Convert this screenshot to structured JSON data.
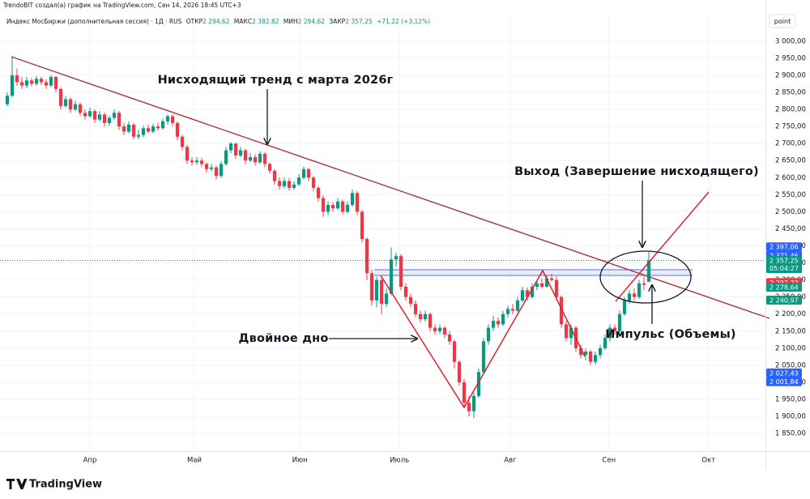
{
  "watermark": "TrendoBIT создал(а) график на TradingView.com, Сен 14, 2026 18:45 UTC+3",
  "scale_button": "point",
  "branding": "TradingView",
  "chart_data": {
    "type": "candlestick",
    "legend": {
      "name": "Индекс МосБиржи (дополнительная сессия) · 1Д · RUS",
      "open_label": "ОТКР",
      "open": "2 294,62",
      "high_label": "МАКС",
      "high": "2 382,82",
      "low_label": "МИН",
      "low": "2 294,62",
      "close_label": "ЗАКР",
      "close": "2 357,25",
      "change": "+71,22 (+3,12%)"
    },
    "up_color": "#089981",
    "down_color": "#f23645",
    "grid": true,
    "open": [
      2815,
      2840,
      2900,
      2880,
      2870,
      2885,
      2875,
      2890,
      2880,
      2870,
      2895,
      2860,
      2810,
      2830,
      2800,
      2815,
      2790,
      2780,
      2795,
      2770,
      2785,
      2760,
      2775,
      2790,
      2750,
      2735,
      2755,
      2720,
      2725,
      2745,
      2735,
      2750,
      2745,
      2765,
      2780,
      2760,
      2720,
      2690,
      2650,
      2645,
      2650,
      2640,
      2625,
      2630,
      2605,
      2640,
      2680,
      2700,
      2665,
      2680,
      2650,
      2660,
      2645,
      2670,
      2640,
      2620,
      2590,
      2575,
      2590,
      2570,
      2580,
      2600,
      2625,
      2600,
      2570,
      2540,
      2500,
      2520,
      2510,
      2530,
      2500,
      2520,
      2555,
      2500,
      2420,
      2320,
      2240,
      2300,
      2230,
      2260,
      2360,
      2370,
      2280,
      2250,
      2230,
      2200,
      2185,
      2200,
      2160,
      2150,
      2160,
      2140,
      2120,
      2060,
      2000,
      1940,
      1915,
      1960,
      2030,
      2120,
      2160,
      2180,
      2170,
      2200,
      2215,
      2210,
      2240,
      2270,
      2250,
      2280,
      2290,
      2280,
      2305,
      2300,
      2250,
      2170,
      2130,
      2160,
      2100,
      2080,
      2090,
      2060,
      2080,
      2100,
      2130,
      2160,
      2150,
      2200,
      2240,
      2260,
      2250,
      2290,
      2294.62
    ],
    "high": [
      2850,
      2955,
      2920,
      2895,
      2895,
      2892,
      2898,
      2896,
      2888,
      2900,
      2898,
      2865,
      2840,
      2835,
      2825,
      2820,
      2800,
      2805,
      2800,
      2795,
      2790,
      2782,
      2800,
      2795,
      2760,
      2765,
      2760,
      2740,
      2752,
      2755,
      2758,
      2760,
      2772,
      2785,
      2785,
      2765,
      2725,
      2695,
      2660,
      2660,
      2658,
      2645,
      2640,
      2635,
      2648,
      2690,
      2705,
      2702,
      2690,
      2685,
      2672,
      2668,
      2678,
      2675,
      2645,
      2625,
      2600,
      2600,
      2598,
      2590,
      2610,
      2632,
      2628,
      2605,
      2575,
      2548,
      2530,
      2528,
      2540,
      2535,
      2530,
      2565,
      2560,
      2505,
      2425,
      2330,
      2310,
      2305,
      2275,
      2395,
      2380,
      2375,
      2290,
      2260,
      2240,
      2210,
      2210,
      2205,
      2170,
      2170,
      2165,
      2150,
      2125,
      2065,
      2010,
      1960,
      1970,
      2040,
      2130,
      2170,
      2195,
      2190,
      2210,
      2225,
      2230,
      2250,
      2280,
      2278,
      2290,
      2300,
      2305,
      2315,
      2318,
      2310,
      2255,
      2180,
      2170,
      2165,
      2110,
      2100,
      2095,
      2090,
      2110,
      2140,
      2170,
      2170,
      2210,
      2250,
      2270,
      2275,
      2300,
      2310,
      2382.82
    ],
    "low": [
      2810,
      2835,
      2870,
      2860,
      2862,
      2868,
      2870,
      2872,
      2860,
      2865,
      2850,
      2800,
      2805,
      2790,
      2795,
      2782,
      2770,
      2775,
      2760,
      2765,
      2750,
      2752,
      2770,
      2740,
      2725,
      2730,
      2712,
      2712,
      2718,
      2730,
      2730,
      2738,
      2740,
      2755,
      2752,
      2710,
      2680,
      2640,
      2635,
      2638,
      2630,
      2615,
      2618,
      2595,
      2600,
      2635,
      2672,
      2655,
      2660,
      2640,
      2645,
      2635,
      2640,
      2630,
      2612,
      2580,
      2565,
      2568,
      2562,
      2565,
      2575,
      2595,
      2590,
      2560,
      2530,
      2485,
      2490,
      2500,
      2505,
      2492,
      2495,
      2515,
      2490,
      2410,
      2300,
      2225,
      2220,
      2200,
      2220,
      2255,
      2340,
      2270,
      2240,
      2220,
      2190,
      2175,
      2178,
      2150,
      2140,
      2142,
      2130,
      2110,
      2040,
      1990,
      1930,
      1900,
      1895,
      1955,
      2025,
      2110,
      2150,
      2160,
      2165,
      2190,
      2200,
      2205,
      2235,
      2240,
      2245,
      2270,
      2275,
      2278,
      2295,
      2240,
      2160,
      2120,
      2110,
      2090,
      2070,
      2065,
      2050,
      2052,
      2070,
      2095,
      2120,
      2140,
      2145,
      2195,
      2230,
      2240,
      2245,
      2270,
      2294.62
    ],
    "close": [
      2840,
      2900,
      2880,
      2870,
      2885,
      2875,
      2890,
      2880,
      2870,
      2895,
      2860,
      2810,
      2830,
      2800,
      2815,
      2790,
      2780,
      2795,
      2770,
      2785,
      2760,
      2775,
      2790,
      2750,
      2735,
      2755,
      2720,
      2725,
      2745,
      2735,
      2750,
      2745,
      2765,
      2780,
      2760,
      2720,
      2690,
      2650,
      2645,
      2650,
      2640,
      2625,
      2630,
      2605,
      2640,
      2680,
      2700,
      2665,
      2680,
      2650,
      2660,
      2645,
      2670,
      2640,
      2620,
      2590,
      2575,
      2590,
      2570,
      2580,
      2600,
      2625,
      2600,
      2570,
      2540,
      2500,
      2520,
      2510,
      2530,
      2500,
      2520,
      2555,
      2500,
      2420,
      2320,
      2240,
      2300,
      2230,
      2260,
      2360,
      2370,
      2280,
      2250,
      2230,
      2200,
      2185,
      2200,
      2160,
      2150,
      2160,
      2140,
      2120,
      2060,
      2000,
      1940,
      1915,
      1960,
      2030,
      2120,
      2160,
      2180,
      2170,
      2200,
      2215,
      2210,
      2240,
      2270,
      2250,
      2280,
      2290,
      2280,
      2305,
      2300,
      2250,
      2170,
      2130,
      2160,
      2100,
      2080,
      2090,
      2060,
      2080,
      2100,
      2130,
      2160,
      2150,
      2200,
      2240,
      2260,
      2250,
      2290,
      2286.03,
      2357.25
    ],
    "xlim": [
      -1.5,
      156
    ],
    "xticks": [
      {
        "value": 17,
        "label": "Апр"
      },
      {
        "value": 38.5,
        "label": "Май"
      },
      {
        "value": 60.2,
        "label": "Июн"
      },
      {
        "value": 80.7,
        "label": "Июль"
      },
      {
        "value": 103.5,
        "label": "Авг"
      },
      {
        "value": 123.8,
        "label": "Сен"
      },
      {
        "value": 144.3,
        "label": "Окт"
      }
    ],
    "ylim": [
      1798,
      3078
    ],
    "yticks": [
      {
        "value": 1850,
        "label": "1 850,00"
      },
      {
        "value": 1900,
        "label": "1 900,00"
      },
      {
        "value": 1950,
        "label": "1 950,00"
      },
      {
        "value": 2000,
        "label": "2 000,00"
      },
      {
        "value": 2050,
        "label": "2 050,00"
      },
      {
        "value": 2100,
        "label": "2 100,00"
      },
      {
        "value": 2150,
        "label": "2 150,00"
      },
      {
        "value": 2200,
        "label": "2 200,00"
      },
      {
        "value": 2250,
        "label": "2 250,00"
      },
      {
        "value": 2300,
        "label": "2 300,00"
      },
      {
        "value": 2350,
        "label": "2 350,00"
      },
      {
        "value": 2400,
        "label": "2 400,00"
      },
      {
        "value": 2450,
        "label": "2 450,00"
      },
      {
        "value": 2500,
        "label": "2 500,00"
      },
      {
        "value": 2550,
        "label": "2 550,00"
      },
      {
        "value": 2600,
        "label": "2 600,00"
      },
      {
        "value": 2650,
        "label": "2 650,00"
      },
      {
        "value": 2700,
        "label": "2 700,00"
      },
      {
        "value": 2750,
        "label": "2 750,00"
      },
      {
        "value": 2800,
        "label": "2 800,00"
      },
      {
        "value": 2850,
        "label": "2 850,00"
      },
      {
        "value": 2900,
        "label": "2 900,00"
      },
      {
        "value": 2950,
        "label": "2 950,00"
      },
      {
        "value": 3000,
        "label": "3 000,00"
      }
    ],
    "last_price": {
      "value": 2357.25,
      "label": "2 357,25",
      "countdown": "05:04:27",
      "color": "#089981"
    },
    "price_labels": [
      {
        "value": 2397.06,
        "label": "2 397,06",
        "color": "#2962ff"
      },
      {
        "value": 2371.46,
        "label": "2 371,46",
        "color": "#2962ff"
      },
      {
        "value": 2292.22,
        "label": "2 292,22",
        "color": "#f23645"
      },
      {
        "value": 2278.64,
        "label": "2 278,64",
        "color": "#089981"
      },
      {
        "value": 2240.97,
        "label": "2 240,97",
        "color": "#089981"
      },
      {
        "value": 2027.43,
        "label": "2 027,43",
        "color": "#2962ff"
      },
      {
        "value": 2001.84,
        "label": "2 001,84",
        "color": "#2962ff"
      }
    ],
    "annotations": [
      "Нисходящий тренд с марта 2026г",
      "Выход (Завершение нисходящего)",
      "Двойное дно",
      "Импульс (Объемы)"
    ]
  }
}
